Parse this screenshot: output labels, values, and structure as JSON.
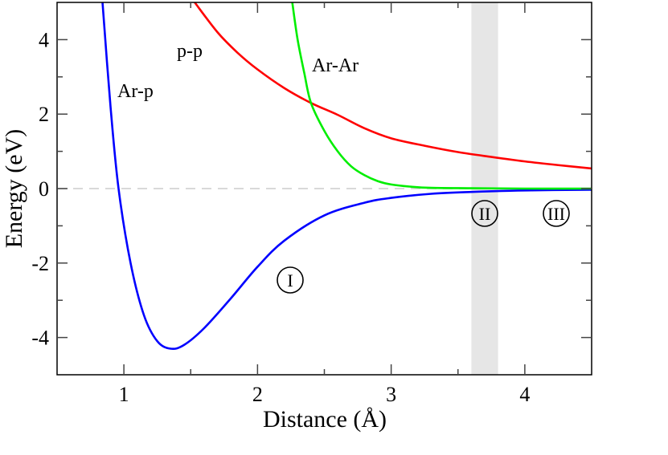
{
  "chart_data": {
    "type": "line",
    "title": "",
    "xlabel": "Distance (Å)",
    "ylabel": "Energy (eV)",
    "xlim": [
      0.5,
      4.5
    ],
    "ylim": [
      -5,
      5
    ],
    "x_ticks": [
      1,
      2,
      3,
      4
    ],
    "x_tick_labels": [
      "1",
      "2",
      "3",
      "4"
    ],
    "x_minor_ticks": [
      1.5,
      2.5,
      3.5
    ],
    "y_ticks": [
      -4,
      -2,
      0,
      2,
      4
    ],
    "y_tick_labels": [
      "-4",
      "-2",
      "0",
      "2",
      "4"
    ],
    "y_minor_ticks": [
      -3,
      -1,
      1,
      3
    ],
    "grid": false,
    "legend": null,
    "reference_line": {
      "y": 0,
      "style": "dashed",
      "color": "#d9d9d9"
    },
    "shaded_band": {
      "x_range": [
        3.6,
        3.8
      ],
      "color": "#e6e6e6"
    },
    "series": [
      {
        "name": "Ar-p",
        "color": "#0000ff",
        "x": [
          0.84,
          0.9,
          0.96,
          1.05,
          1.15,
          1.25,
          1.35,
          1.45,
          1.6,
          1.8,
          2.0,
          2.2,
          2.5,
          2.8,
          3.0,
          3.3,
          3.6,
          4.0,
          4.5
        ],
        "y": [
          5.0,
          2.2,
          0.0,
          -2.0,
          -3.4,
          -4.1,
          -4.3,
          -4.2,
          -3.75,
          -2.95,
          -2.1,
          -1.4,
          -0.72,
          -0.38,
          -0.25,
          -0.14,
          -0.09,
          -0.05,
          -0.03
        ]
      },
      {
        "name": "p-p",
        "color": "#ff0000",
        "x": [
          1.53,
          1.7,
          1.85,
          2.0,
          2.2,
          2.4,
          2.6,
          2.8,
          3.0,
          3.25,
          3.5,
          3.75,
          4.0,
          4.25,
          4.5
        ],
        "y": [
          5.0,
          4.2,
          3.65,
          3.2,
          2.7,
          2.3,
          1.98,
          1.62,
          1.35,
          1.15,
          0.98,
          0.85,
          0.73,
          0.63,
          0.54
        ]
      },
      {
        "name": "Ar-Ar",
        "color": "#00ee00",
        "x": [
          2.26,
          2.3,
          2.35,
          2.4,
          2.5,
          2.6,
          2.7,
          2.8,
          2.9,
          3.0,
          3.15,
          3.3,
          3.6,
          4.0,
          4.5
        ],
        "y": [
          5.0,
          4.0,
          3.1,
          2.3,
          1.55,
          1.0,
          0.6,
          0.36,
          0.2,
          0.11,
          0.05,
          0.02,
          0.01,
          0.0,
          0.0
        ]
      }
    ],
    "annotations": [
      {
        "text": "Ar-p",
        "x": 0.95,
        "y": 2.6
      },
      {
        "text": "p-p",
        "x": 1.5,
        "y": 3.7
      },
      {
        "text": "Ar-Ar",
        "x": 2.9,
        "y": 3.3
      },
      {
        "text": "I",
        "x": 2.24,
        "y": -2.45,
        "circled": true
      },
      {
        "text": "II",
        "x": 3.71,
        "y": -0.7,
        "circled": true
      },
      {
        "text": "III",
        "x": 4.24,
        "y": -0.7,
        "circled": true
      }
    ]
  },
  "axes": {
    "xlabel": "Distance (Å)",
    "ylabel": "Energy (eV)"
  },
  "labels": {
    "ar_p": "Ar-p",
    "p_p": "p-p",
    "ar_ar": "Ar-Ar",
    "region_1": "I",
    "region_2": "II",
    "region_3": "III"
  }
}
